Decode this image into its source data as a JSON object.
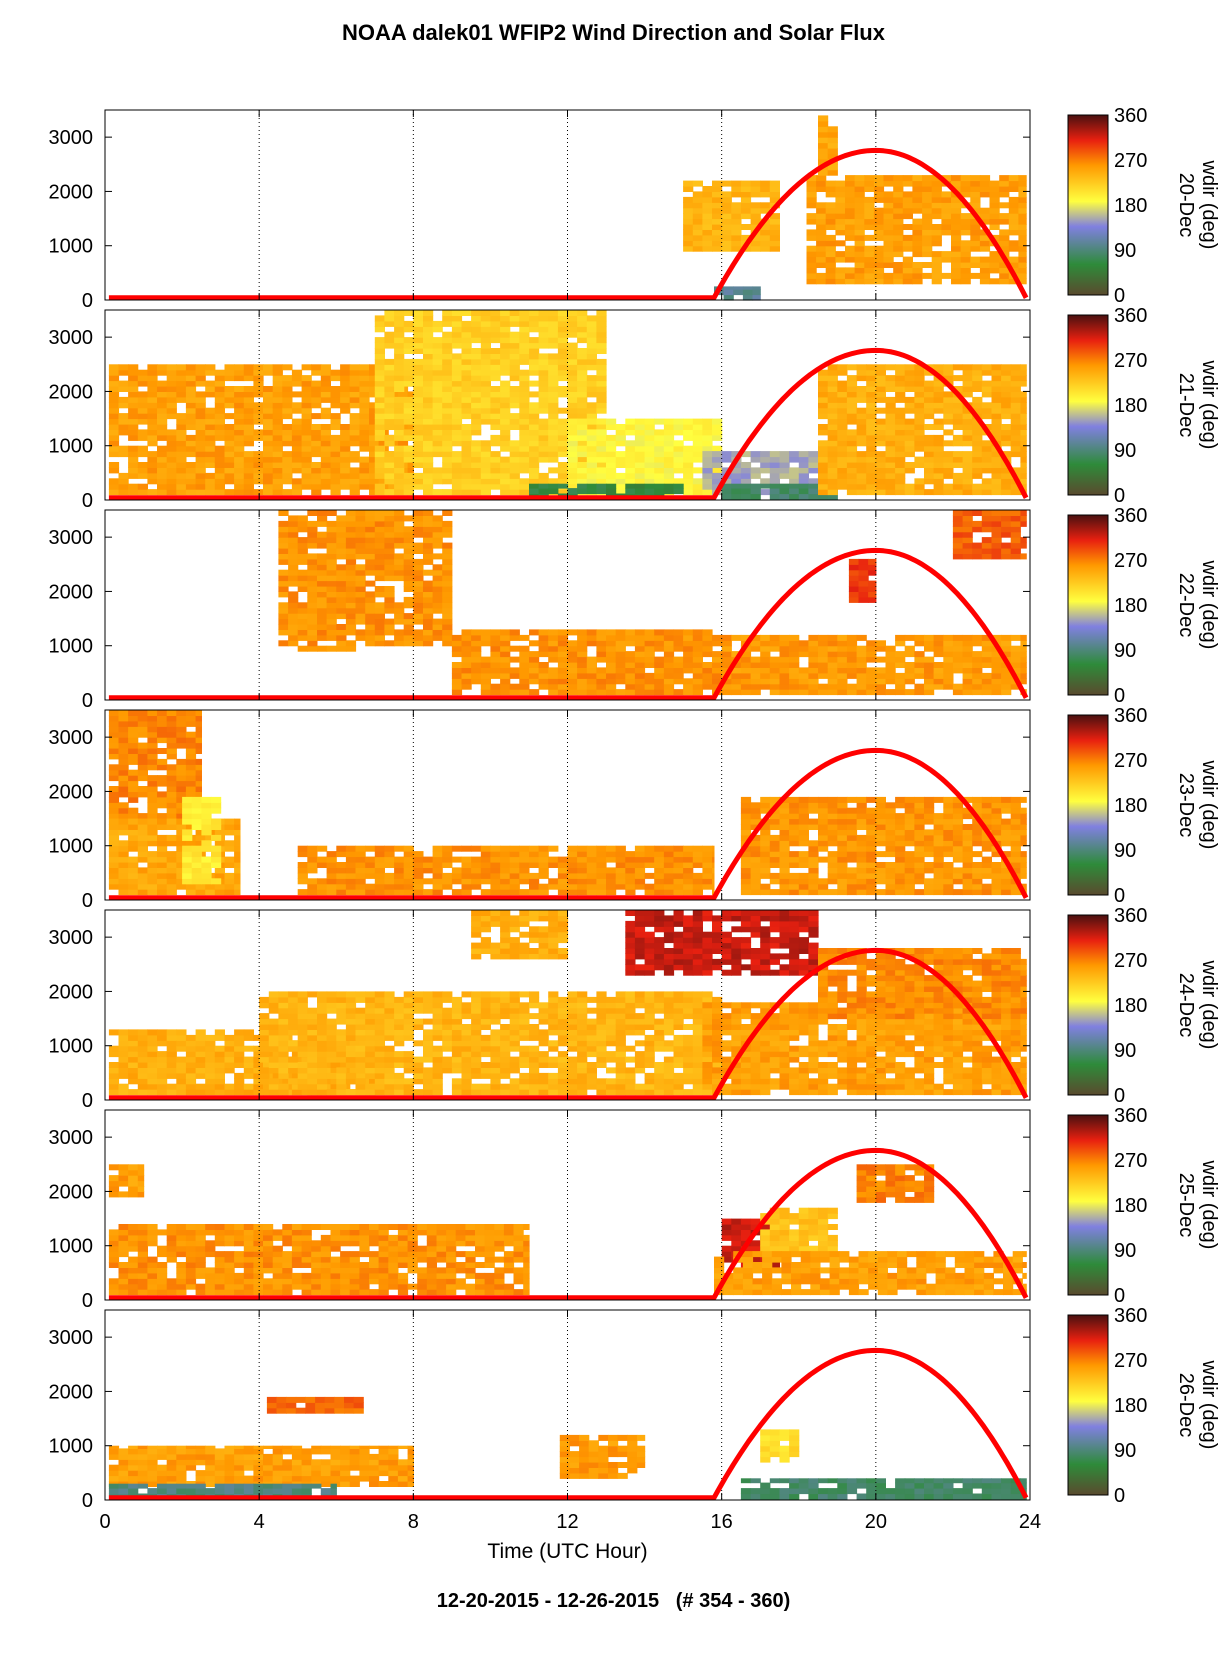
{
  "title": "NOAA dalek01 WFIP2 Wind Direction and Solar Flux",
  "date_range": "12-20-2015 - 12-26-2015   (# 354 - 360)",
  "chart_data": {
    "type": "heatmap",
    "xlabel": "Time (UTC Hour)",
    "xlim": [
      0,
      24
    ],
    "x_ticks": [
      0,
      4,
      8,
      12,
      16,
      20,
      24
    ],
    "ylim": [
      0,
      3500
    ],
    "y_ticks": [
      0,
      1000,
      2000,
      3000
    ],
    "colorbar": {
      "label": "wdir (deg)",
      "ticks": [
        0,
        90,
        180,
        270,
        360
      ],
      "colors": [
        "#5a4a2e",
        "#2e8b3a",
        "#8080e0",
        "#ffff40",
        "#ff9900",
        "#e82010",
        "#4a1010"
      ]
    },
    "grid": "dotted vertical lines at 4-hour ticks",
    "solar_flux_curve": {
      "color": "#ff0000",
      "sunrise_hour": 15.8,
      "peak_hour": 20,
      "sunset_hour": 23.9,
      "peak_height": 2800
    },
    "panels": [
      {
        "day": "20-Dec",
        "patches": [
          {
            "x0": 15,
            "x1": 17.5,
            "y0": 900,
            "y1": 2200,
            "c": 240
          },
          {
            "x0": 18.2,
            "x1": 23.9,
            "y0": 300,
            "y1": 2300,
            "c": 255
          },
          {
            "x0": 18.5,
            "x1": 19,
            "y0": 2300,
            "y1": 3500,
            "c": 250
          },
          {
            "x0": 15.8,
            "x1": 17,
            "y0": 0,
            "y1": 250,
            "c": 100
          }
        ]
      },
      {
        "day": "21-Dec",
        "patches": [
          {
            "x0": 0.1,
            "x1": 8,
            "y0": 100,
            "y1": 2500,
            "c": 255
          },
          {
            "x0": 7,
            "x1": 13,
            "y0": 100,
            "y1": 3500,
            "c": 220
          },
          {
            "x0": 12,
            "x1": 16,
            "y0": 100,
            "y1": 1500,
            "c": 190
          },
          {
            "x0": 15.5,
            "x1": 19,
            "y0": 100,
            "y1": 900,
            "c": 150
          },
          {
            "x0": 16,
            "x1": 19,
            "y0": 20,
            "y1": 300,
            "c": 80
          },
          {
            "x0": 18.5,
            "x1": 23.9,
            "y0": 100,
            "y1": 2500,
            "c": 245
          },
          {
            "x0": 11,
            "x1": 15,
            "y0": 20,
            "y1": 300,
            "c": 60
          }
        ]
      },
      {
        "day": "22-Dec",
        "patches": [
          {
            "x0": 4.5,
            "x1": 6.5,
            "y0": 900,
            "y1": 3500,
            "c": 262
          },
          {
            "x0": 6.5,
            "x1": 9,
            "y0": 1000,
            "y1": 3500,
            "c": 262
          },
          {
            "x0": 9,
            "x1": 16,
            "y0": 100,
            "y1": 1300,
            "c": 262
          },
          {
            "x0": 16,
            "x1": 23.9,
            "y0": 100,
            "y1": 1200,
            "c": 258
          },
          {
            "x0": 19.3,
            "x1": 20,
            "y0": 1800,
            "y1": 2600,
            "c": 300
          },
          {
            "x0": 22,
            "x1": 23.9,
            "y0": 2600,
            "y1": 3500,
            "c": 285
          }
        ]
      },
      {
        "day": "23-Dec",
        "patches": [
          {
            "x0": 0.1,
            "x1": 2.5,
            "y0": 1500,
            "y1": 3500,
            "c": 268
          },
          {
            "x0": 0.1,
            "x1": 3.5,
            "y0": 100,
            "y1": 1500,
            "c": 250
          },
          {
            "x0": 2,
            "x1": 3,
            "y0": 300,
            "y1": 1900,
            "c": 200
          },
          {
            "x0": 5,
            "x1": 15.8,
            "y0": 100,
            "y1": 1000,
            "c": 262
          },
          {
            "x0": 16.5,
            "x1": 23.9,
            "y0": 100,
            "y1": 1900,
            "c": 260
          }
        ]
      },
      {
        "day": "24-Dec",
        "patches": [
          {
            "x0": 0.1,
            "x1": 7,
            "y0": 100,
            "y1": 1300,
            "c": 245
          },
          {
            "x0": 4,
            "x1": 16,
            "y0": 100,
            "y1": 2000,
            "c": 240
          },
          {
            "x0": 9.5,
            "x1": 12,
            "y0": 2600,
            "y1": 3500,
            "c": 245
          },
          {
            "x0": 13.5,
            "x1": 18.5,
            "y0": 2300,
            "y1": 3500,
            "c": 320
          },
          {
            "x0": 15.5,
            "x1": 23.9,
            "y0": 100,
            "y1": 1800,
            "c": 255
          },
          {
            "x0": 18.5,
            "x1": 23.9,
            "y0": 1500,
            "y1": 2800,
            "c": 265
          }
        ]
      },
      {
        "day": "25-Dec",
        "patches": [
          {
            "x0": 0.1,
            "x1": 11,
            "y0": 100,
            "y1": 1400,
            "c": 262
          },
          {
            "x0": 0.1,
            "x1": 1,
            "y0": 1900,
            "y1": 2500,
            "c": 255
          },
          {
            "x0": 16,
            "x1": 17.5,
            "y0": 600,
            "y1": 1500,
            "c": 320
          },
          {
            "x0": 17,
            "x1": 19,
            "y0": 800,
            "y1": 1700,
            "c": 230
          },
          {
            "x0": 19.5,
            "x1": 21.5,
            "y0": 1800,
            "y1": 2500,
            "c": 270
          },
          {
            "x0": 15.8,
            "x1": 23.9,
            "y0": 100,
            "y1": 900,
            "c": 255
          }
        ]
      },
      {
        "day": "26-Dec",
        "patches": [
          {
            "x0": 0.1,
            "x1": 8,
            "y0": 250,
            "y1": 1000,
            "c": 255
          },
          {
            "x0": 0.1,
            "x1": 6,
            "y0": 20,
            "y1": 300,
            "c": 90
          },
          {
            "x0": 4.2,
            "x1": 6.7,
            "y0": 1600,
            "y1": 1900,
            "c": 280
          },
          {
            "x0": 11.8,
            "x1": 14,
            "y0": 400,
            "y1": 1200,
            "c": 258
          },
          {
            "x0": 16.5,
            "x1": 23.9,
            "y0": 20,
            "y1": 400,
            "c": 80
          },
          {
            "x0": 17,
            "x1": 18,
            "y0": 700,
            "y1": 1300,
            "c": 210
          }
        ]
      }
    ]
  }
}
